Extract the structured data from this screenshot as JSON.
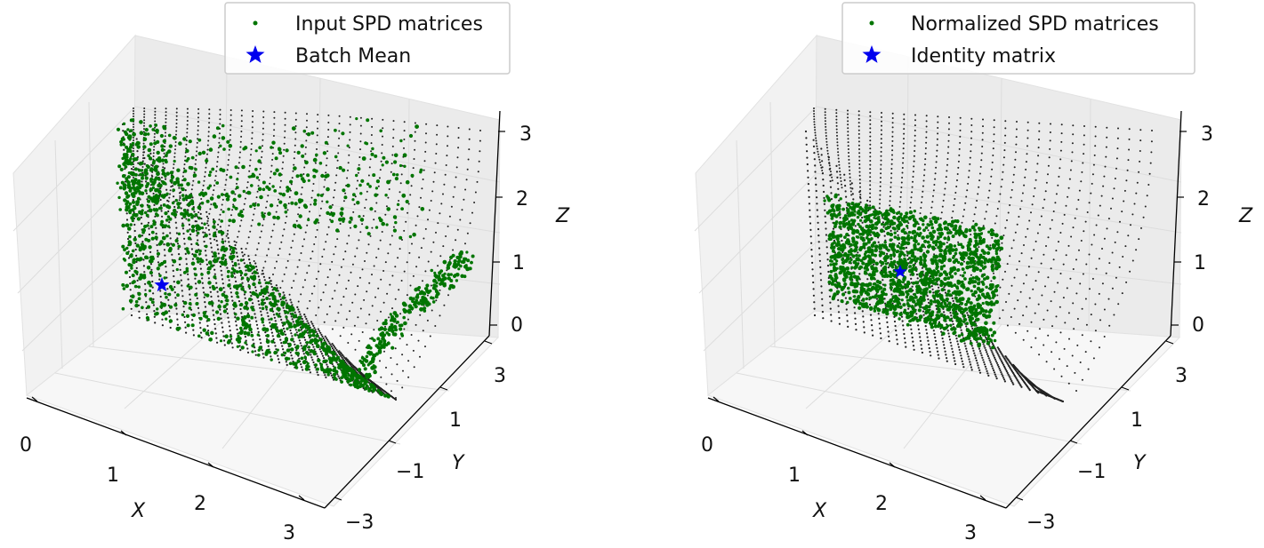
{
  "chart_data": [
    {
      "type": "scatter",
      "title": "",
      "xlabel": "X",
      "ylabel": "Y",
      "zlabel": "Z",
      "xlim": [
        0,
        3
      ],
      "ylim": [
        -3,
        3
      ],
      "zlim": [
        0,
        3
      ],
      "x_ticks": [
        "0",
        "1",
        "2",
        "3"
      ],
      "y_ticks": [
        "−3",
        "−1",
        "1",
        "3"
      ],
      "z_ticks": [
        "0",
        "1",
        "2",
        "3"
      ],
      "grid": true,
      "legend_position": "top-right",
      "series": [
        {
          "name": "Input SPD matrices",
          "marker": "dot",
          "color": "#007500"
        },
        {
          "name": "Batch Mean",
          "marker": "star",
          "color": "#0000ee",
          "points": [
            {
              "x": 0.5,
              "y": 0.0,
              "z": 0.5
            }
          ]
        }
      ],
      "surface": {
        "color": "#222222",
        "description_marker": "cone"
      },
      "green_color": "#007500",
      "star_color": "#0000ee"
    },
    {
      "type": "scatter",
      "title": "",
      "xlabel": "X",
      "ylabel": "Y",
      "zlabel": "Z",
      "xlim": [
        0,
        3
      ],
      "ylim": [
        -3,
        3
      ],
      "zlim": [
        0,
        3
      ],
      "x_ticks": [
        "0",
        "1",
        "2",
        "3"
      ],
      "y_ticks": [
        "−3",
        "−1",
        "1",
        "3"
      ],
      "z_ticks": [
        "0",
        "1",
        "2",
        "3"
      ],
      "grid": true,
      "legend_position": "top-right",
      "series": [
        {
          "name": "Normalized SPD matrices",
          "marker": "dot",
          "color": "#007500"
        },
        {
          "name": "Identity matrix",
          "marker": "star",
          "color": "#0000ee",
          "points": [
            {
              "x": 1,
              "y": 0,
              "z": 1
            }
          ]
        }
      ],
      "surface": {
        "color": "#222222"
      },
      "green_color": "#007500",
      "star_color": "#0000ee"
    }
  ]
}
